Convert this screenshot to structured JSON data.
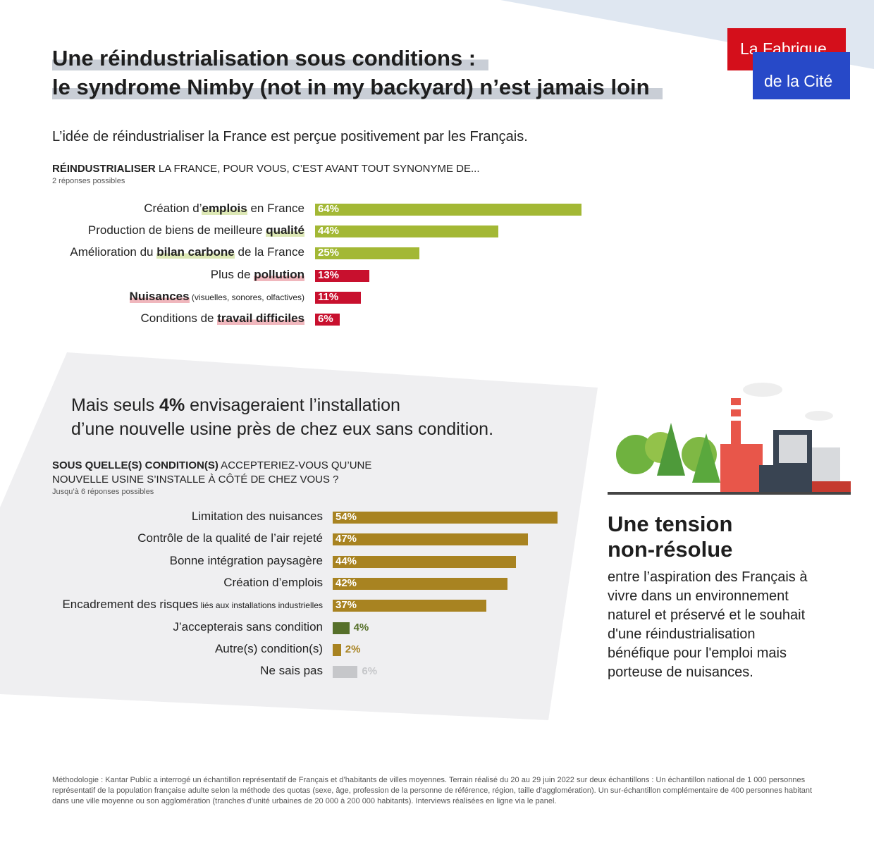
{
  "header": {
    "title_line1": "Une réindustrialisation sous conditions :",
    "title_line2": "le syndrome Nimby (not in my backyard) n’est jamais loin",
    "logo_line1": "La Fabrique",
    "logo_line2": "de la Cité"
  },
  "intro": "L’idée de réindustrialiser la France est perçue positivement par les Français.",
  "section2": {
    "pre": "Mais seuls ",
    "bold": "4%",
    "post": " envisageraient l’installation",
    "line2": "d’une nouvelle usine près de chez eux sans condition."
  },
  "tension": {
    "heading1": "Une tension",
    "heading2": "non-résolue",
    "text": "entre l’aspiration des Français à vivre dans un environnement naturel et préservé et le souhait d'une réindustrialisation bénéfique pour l'emploi mais porteuse de nuisances."
  },
  "methodology": "Méthodologie : Kantar Public a interrogé un échantillon représentatif de Français et d’habitants de villes moyennes. Terrain réalisé du 20 au 29 juin 2022 sur deux échantillons : Un échantillon national de 1 000 personnes représentatif de la population française adulte selon la méthode des quotas (sexe, âge, profession de la personne de référence, région, taille d’agglomération). Un sur-échantillon complémentaire de 400 personnes habitant dans une ville moyenne ou son agglomération (tranches d’unité urbaines de 20 000 à 200 000 habitants). Interviews réalisées en ligne via le panel.",
  "colors": {
    "green": "#a3b835",
    "red": "#c8102e",
    "gold": "#a88321",
    "darkgreen": "#56702a",
    "grey": "#c6c7ca",
    "logo_red": "#d40f1b",
    "logo_blue": "#2749c8"
  },
  "chart_data": [
    {
      "type": "bar",
      "orientation": "horizontal",
      "title_bold": "RÉINDUSTRIALISER",
      "title_rest": " LA FRANCE, POUR VOUS, C’EST AVANT TOUT SYNONYME DE...",
      "note": "2 réponses possibles",
      "unit": "%",
      "xlim": [
        0,
        100
      ],
      "items": [
        {
          "pre": "Création d’",
          "bold": "emplois",
          "post": " en France",
          "small": "",
          "value": 64,
          "label": "64%",
          "color": "green",
          "hl": "g"
        },
        {
          "pre": "Production de biens de meilleure ",
          "bold": "qualité",
          "post": "",
          "small": "",
          "value": 44,
          "label": "44%",
          "color": "green",
          "hl": "g"
        },
        {
          "pre": "Amélioration du ",
          "bold": "bilan carbone",
          "post": " de la France",
          "small": "",
          "value": 25,
          "label": "25%",
          "color": "green",
          "hl": "g"
        },
        {
          "pre": "Plus de ",
          "bold": "pollution",
          "post": "",
          "small": "",
          "value": 13,
          "label": "13%",
          "color": "red",
          "hl": "r"
        },
        {
          "pre": "",
          "bold": "Nuisances",
          "post": "",
          "small": " (visuelles, sonores, olfactives)",
          "value": 11,
          "label": "11%",
          "color": "red",
          "hl": "r"
        },
        {
          "pre": "Conditions de ",
          "bold": "travail difficiles",
          "post": "",
          "small": "",
          "value": 6,
          "label": "6%",
          "color": "red",
          "hl": "r"
        }
      ]
    },
    {
      "type": "bar",
      "orientation": "horizontal",
      "title_bold": "SOUS QUELLE(S) CONDITION(S)",
      "title_rest": " ACCEPTERIEZ-VOUS QU’UNE",
      "title_line2": "NOUVELLE USINE S’INSTALLE À CÔTÉ DE CHEZ VOUS ?",
      "note": "Jusqu’à 6 réponses possibles",
      "unit": "%",
      "xlim": [
        0,
        100
      ],
      "items": [
        {
          "pre": "Limitation des nuisances",
          "bold": "",
          "post": "",
          "small": "",
          "value": 54,
          "label": "54%",
          "color": "gold",
          "inside": true
        },
        {
          "pre": "Contrôle de la qualité de l’air rejeté",
          "bold": "",
          "post": "",
          "small": "",
          "value": 47,
          "label": "47%",
          "color": "gold",
          "inside": true
        },
        {
          "pre": "Bonne intégration paysagère",
          "bold": "",
          "post": "",
          "small": "",
          "value": 44,
          "label": "44%",
          "color": "gold",
          "inside": true
        },
        {
          "pre": "Création d’emplois",
          "bold": "",
          "post": "",
          "small": "",
          "value": 42,
          "label": "42%",
          "color": "gold",
          "inside": true
        },
        {
          "pre": "Encadrement des risques",
          "bold": "",
          "post": "",
          "small": " liés aux installations industrielles",
          "value": 37,
          "label": "37%",
          "color": "gold",
          "inside": true
        },
        {
          "pre": "J’accepterais sans condition",
          "bold": "",
          "post": "",
          "small": "",
          "value": 4,
          "label": "4%",
          "color": "darkgreen",
          "inside": false
        },
        {
          "pre": "Autre(s) condition(s)",
          "bold": "",
          "post": "",
          "small": "",
          "value": 2,
          "label": "2%",
          "color": "gold",
          "inside": false
        },
        {
          "pre": "Ne sais pas",
          "bold": "",
          "post": "",
          "small": "",
          "value": 6,
          "label": "6%",
          "color": "grey",
          "inside": false
        }
      ]
    }
  ]
}
